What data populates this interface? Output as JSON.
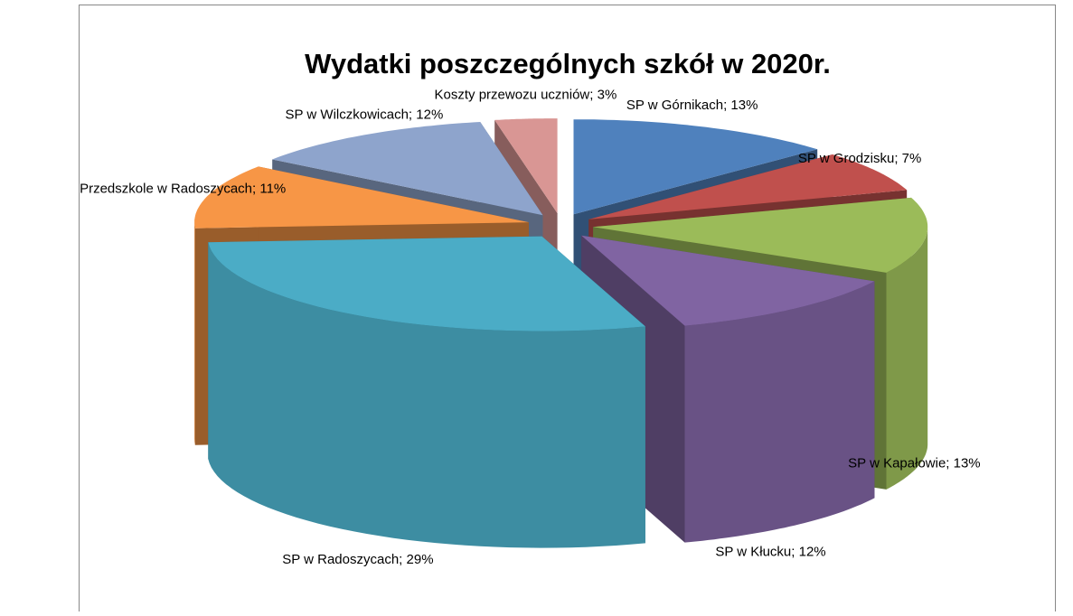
{
  "chart_data": {
    "type": "pie",
    "title": "Wydatki  poszczególnych szkół w 2020r.",
    "values": [
      13,
      7,
      13,
      12,
      29,
      11,
      12,
      3
    ],
    "value_labels": [
      "SP w Górnikach; 13%",
      "SP w Grodzisku; 7%",
      "SP w Kapałowie; 13%",
      "SP w Kłucku; 12%",
      "SP w Radoszycach; 29%",
      "Przedszkole w Radoszycach; 11%",
      "SP w Wilczkowicach; 12%",
      "Koszty przewozu uczniów; 3%"
    ],
    "colors": [
      "#4f81bd",
      "#c0504d",
      "#9bbb59",
      "#8064a2",
      "#4bacc6",
      "#f79646",
      "#8ea4cc",
      "#d99694"
    ],
    "three_d": true,
    "exploded": true
  }
}
